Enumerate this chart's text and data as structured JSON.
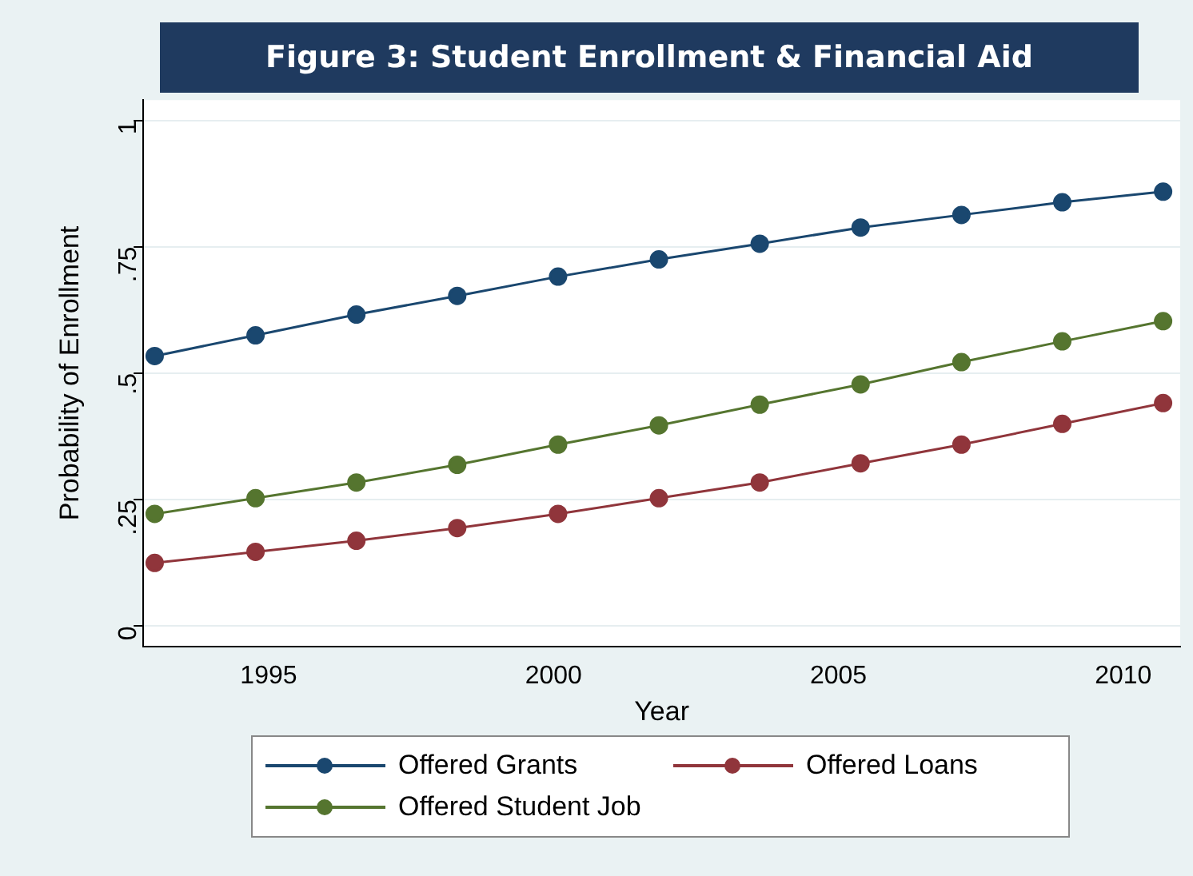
{
  "chart_data": {
    "type": "line",
    "title": "Figure 3: Student Enrollment & Financial Aid",
    "xlabel": "Year",
    "ylabel": "Probability of Enrollment",
    "x": [
      1993,
      1994.77,
      1996.54,
      1998.31,
      2000.08,
      2001.85,
      2003.62,
      2005.39,
      2007.16,
      2008.93,
      2010.7
    ],
    "series": [
      {
        "name": "Offered Grants",
        "color": "#1a476f",
        "values": [
          0.534,
          0.575,
          0.616,
          0.653,
          0.691,
          0.725,
          0.756,
          0.788,
          0.813,
          0.838,
          0.859
        ]
      },
      {
        "name": "Offered Loans",
        "color": "#90353b",
        "values": [
          0.125,
          0.147,
          0.169,
          0.194,
          0.222,
          0.253,
          0.284,
          0.322,
          0.359,
          0.4,
          0.441
        ]
      },
      {
        "name": "Offered Student Job",
        "color": "#55752f",
        "values": [
          0.222,
          0.253,
          0.284,
          0.319,
          0.359,
          0.397,
          0.438,
          0.478,
          0.522,
          0.563,
          0.603
        ]
      }
    ],
    "xlim": [
      1992.8,
      2011
    ],
    "xticks": [
      1995,
      2000,
      2005,
      2010
    ],
    "ylim": [
      -0.04,
      1.04
    ],
    "yticks": [
      {
        "value": 0,
        "label": "0"
      },
      {
        "value": 0.25,
        "label": ".25"
      },
      {
        "value": 0.5,
        "label": ".5"
      },
      {
        "value": 0.75,
        "label": ".75"
      },
      {
        "value": 1,
        "label": "1"
      }
    ],
    "grid": "y",
    "legend": "bottom",
    "marker": "circle",
    "line_style": "solid"
  }
}
